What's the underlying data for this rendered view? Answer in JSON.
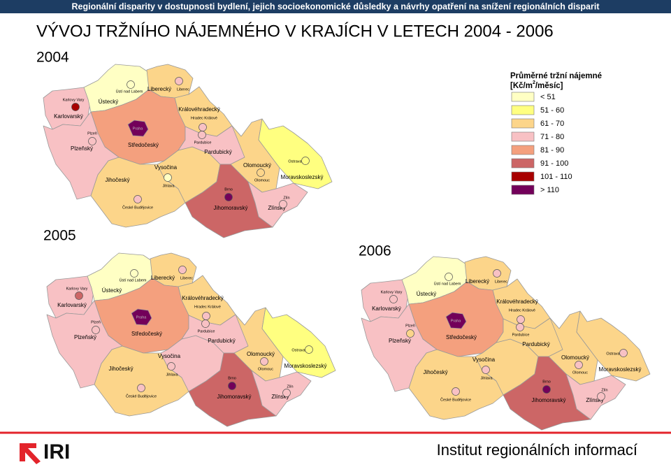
{
  "header": "Regionální disparity v dostupnosti bydlení, jejich socioekonomické důsledky a návrhy opatření na snížení regionálních disparit",
  "title": "VÝVOJ TRŽNÍHO NÁJEMNÉHO V KRAJÍCH V LETECH 2004 - 2006",
  "legend": {
    "title": "Průměrné tržní nájemné",
    "unit_start": "[Kč/m",
    "unit_sup": "2",
    "unit_end": "/měsíc]",
    "items": [
      {
        "label": "< 51",
        "color": "#ffffc4"
      },
      {
        "label": "51 - 60",
        "color": "#ffff80"
      },
      {
        "label": "61 - 70",
        "color": "#fcd58a"
      },
      {
        "label": "71 - 80",
        "color": "#f8c1c4"
      },
      {
        "label": "81 - 90",
        "color": "#f4a07e"
      },
      {
        "label": "91 - 100",
        "color": "#cc6666"
      },
      {
        "label": "101 - 110",
        "color": "#a80000"
      },
      {
        "label": "> 110",
        "color": "#73005a"
      }
    ]
  },
  "maps": [
    {
      "year": "2004",
      "regions": [
        {
          "name": "Karlovarský",
          "color": "#f8c1c4"
        },
        {
          "name": "Ústecký",
          "color": "#ffffc4"
        },
        {
          "name": "Liberecký",
          "color": "#fcd58a"
        },
        {
          "name": "Královéhradecký",
          "color": "#fcd58a"
        },
        {
          "name": "Středočeský",
          "color": "#f4a07e"
        },
        {
          "name": "Plzeňský",
          "color": "#f8c1c4"
        },
        {
          "name": "Jihočeský",
          "color": "#fcd58a"
        },
        {
          "name": "Vysočina",
          "color": "#fcd58a"
        },
        {
          "name": "Pardubický",
          "color": "#f8c1c4"
        },
        {
          "name": "Olomoucký",
          "color": "#fcd58a"
        },
        {
          "name": "Moravskoslezský",
          "color": "#ffff80"
        },
        {
          "name": "Jihomoravský",
          "color": "#cc6666"
        },
        {
          "name": "Zlínský",
          "color": "#f8c1c4"
        },
        {
          "name": "Praha",
          "color": "#73005a"
        }
      ],
      "cities": [
        {
          "name": "Karlovy Vary",
          "color": "#a80000"
        },
        {
          "name": "Ústí nad Labem",
          "color": "#ffffc4"
        },
        {
          "name": "Liberec",
          "color": "#f8c1c4"
        },
        {
          "name": "Hradec Králové",
          "color": "#f8c1c4"
        },
        {
          "name": "Plzeň",
          "color": "#f8c1c4"
        },
        {
          "name": "Pardubice",
          "color": "#f8c1c4"
        },
        {
          "name": "Jihlava",
          "color": "#ffffc4"
        },
        {
          "name": "České Budějovice",
          "color": "#f8c1c4"
        },
        {
          "name": "Olomouc",
          "color": "#fcd58a"
        },
        {
          "name": "Ostrava",
          "color": "#ffff80"
        },
        {
          "name": "Brno",
          "color": "#73005a"
        },
        {
          "name": "Zlín",
          "color": "#f8c1c4"
        }
      ]
    },
    {
      "year": "2005",
      "regions": [
        {
          "name": "Karlovarský",
          "color": "#f8c1c4"
        },
        {
          "name": "Ústecký",
          "color": "#ffffc4"
        },
        {
          "name": "Liberecký",
          "color": "#fcd58a"
        },
        {
          "name": "Královéhradecký",
          "color": "#fcd58a"
        },
        {
          "name": "Středočeský",
          "color": "#f4a07e"
        },
        {
          "name": "Plzeňský",
          "color": "#f8c1c4"
        },
        {
          "name": "Jihočeský",
          "color": "#fcd58a"
        },
        {
          "name": "Vysočina",
          "color": "#f8c1c4"
        },
        {
          "name": "Pardubický",
          "color": "#f8c1c4"
        },
        {
          "name": "Olomoucký",
          "color": "#fcd58a"
        },
        {
          "name": "Moravskoslezský",
          "color": "#ffff80"
        },
        {
          "name": "Jihomoravský",
          "color": "#cc6666"
        },
        {
          "name": "Zlínský",
          "color": "#f8c1c4"
        },
        {
          "name": "Praha",
          "color": "#73005a"
        }
      ],
      "cities": [
        {
          "name": "Karlovy Vary",
          "color": "#cc6666"
        },
        {
          "name": "Ústí nad Labem",
          "color": "#ffffc4"
        },
        {
          "name": "Liberec",
          "color": "#f8c1c4"
        },
        {
          "name": "Hradec Králové",
          "color": "#f8c1c4"
        },
        {
          "name": "Plzeň",
          "color": "#f8c1c4"
        },
        {
          "name": "Pardubice",
          "color": "#f8c1c4"
        },
        {
          "name": "Jihlava",
          "color": "#f8c1c4"
        },
        {
          "name": "České Budějovice",
          "color": "#f8c1c4"
        },
        {
          "name": "Olomouc",
          "color": "#f8c1c4"
        },
        {
          "name": "Ostrava",
          "color": "#ffff80"
        },
        {
          "name": "Brno",
          "color": "#73005a"
        },
        {
          "name": "Zlín",
          "color": "#f8c1c4"
        }
      ]
    },
    {
      "year": "2006",
      "regions": [
        {
          "name": "Karlovarský",
          "color": "#f8c1c4"
        },
        {
          "name": "Ústecký",
          "color": "#ffffc4"
        },
        {
          "name": "Liberecký",
          "color": "#fcd58a"
        },
        {
          "name": "Královéhradecký",
          "color": "#fcd58a"
        },
        {
          "name": "Středočeský",
          "color": "#f4a07e"
        },
        {
          "name": "Plzeňský",
          "color": "#f8c1c4"
        },
        {
          "name": "Jihočeský",
          "color": "#fcd58a"
        },
        {
          "name": "Vysočina",
          "color": "#fcd58a"
        },
        {
          "name": "Pardubický",
          "color": "#fcd58a"
        },
        {
          "name": "Olomoucký",
          "color": "#fcd58a"
        },
        {
          "name": "Moravskoslezský",
          "color": "#fcd58a"
        },
        {
          "name": "Jihomoravský",
          "color": "#cc6666"
        },
        {
          "name": "Zlínský",
          "color": "#f8c1c4"
        },
        {
          "name": "Praha",
          "color": "#73005a"
        }
      ],
      "cities": [
        {
          "name": "Karlovy Vary",
          "color": "#f8c1c4"
        },
        {
          "name": "Ústí nad Labem",
          "color": "#ffffc4"
        },
        {
          "name": "Liberec",
          "color": "#f8c1c4"
        },
        {
          "name": "Hradec Králové",
          "color": "#f8c1c4"
        },
        {
          "name": "Plzeň",
          "color": "#fcd58a"
        },
        {
          "name": "Pardubice",
          "color": "#f8c1c4"
        },
        {
          "name": "Jihlava",
          "color": "#f8c1c4"
        },
        {
          "name": "České Budějovice",
          "color": "#f8c1c4"
        },
        {
          "name": "Olomouc",
          "color": "#f8c1c4"
        },
        {
          "name": "Ostrava",
          "color": "#f8c1c4"
        },
        {
          "name": "Brno",
          "color": "#73005a"
        },
        {
          "name": "Zlín",
          "color": "#f8c1c4"
        }
      ]
    }
  ],
  "footer": {
    "logo": "IRI",
    "text": "Institut regionálních informací"
  }
}
